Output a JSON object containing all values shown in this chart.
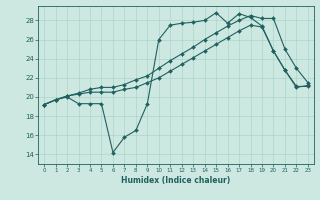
{
  "title": "",
  "xlabel": "Humidex (Indice chaleur)",
  "xlim": [
    -0.5,
    23.5
  ],
  "ylim": [
    13.0,
    29.5
  ],
  "yticks": [
    14,
    16,
    18,
    20,
    22,
    24,
    26,
    28
  ],
  "xticks": [
    0,
    1,
    2,
    3,
    4,
    5,
    6,
    7,
    8,
    9,
    10,
    11,
    12,
    13,
    14,
    15,
    16,
    17,
    18,
    19,
    20,
    21,
    22,
    23
  ],
  "background_color": "#cce8e0",
  "grid_color": "#aad4cc",
  "line_color": "#206060",
  "series": [
    {
      "x": [
        0,
        1,
        2,
        3,
        4,
        5,
        6,
        7,
        8,
        9,
        10,
        11,
        12,
        13,
        14,
        15,
        16,
        17,
        18,
        19,
        20,
        21,
        22,
        23
      ],
      "y": [
        19.2,
        19.7,
        20.0,
        19.3,
        19.3,
        19.3,
        14.2,
        15.8,
        16.5,
        19.3,
        26.0,
        27.5,
        27.7,
        27.8,
        28.0,
        28.8,
        27.7,
        28.7,
        28.3,
        27.4,
        24.8,
        22.8,
        21.0,
        21.2
      ]
    },
    {
      "x": [
        0,
        1,
        2,
        3,
        4,
        5,
        6,
        7,
        8,
        9,
        10,
        11,
        12,
        13,
        14,
        15,
        16,
        17,
        18,
        19,
        20,
        21,
        22,
        23
      ],
      "y": [
        19.2,
        19.7,
        20.1,
        20.3,
        20.5,
        20.5,
        20.5,
        20.8,
        21.0,
        21.5,
        22.0,
        22.7,
        23.4,
        24.1,
        24.8,
        25.5,
        26.2,
        26.9,
        27.5,
        27.3,
        24.8,
        22.8,
        21.1,
        21.1
      ]
    },
    {
      "x": [
        0,
        1,
        2,
        3,
        4,
        5,
        6,
        7,
        8,
        9,
        10,
        11,
        12,
        13,
        14,
        15,
        16,
        17,
        18,
        19,
        20,
        21,
        22,
        23
      ],
      "y": [
        19.2,
        19.7,
        20.1,
        20.4,
        20.8,
        21.0,
        21.0,
        21.3,
        21.8,
        22.2,
        23.0,
        23.8,
        24.5,
        25.2,
        26.0,
        26.7,
        27.4,
        28.0,
        28.5,
        28.2,
        28.2,
        25.0,
        23.0,
        21.5
      ]
    }
  ]
}
